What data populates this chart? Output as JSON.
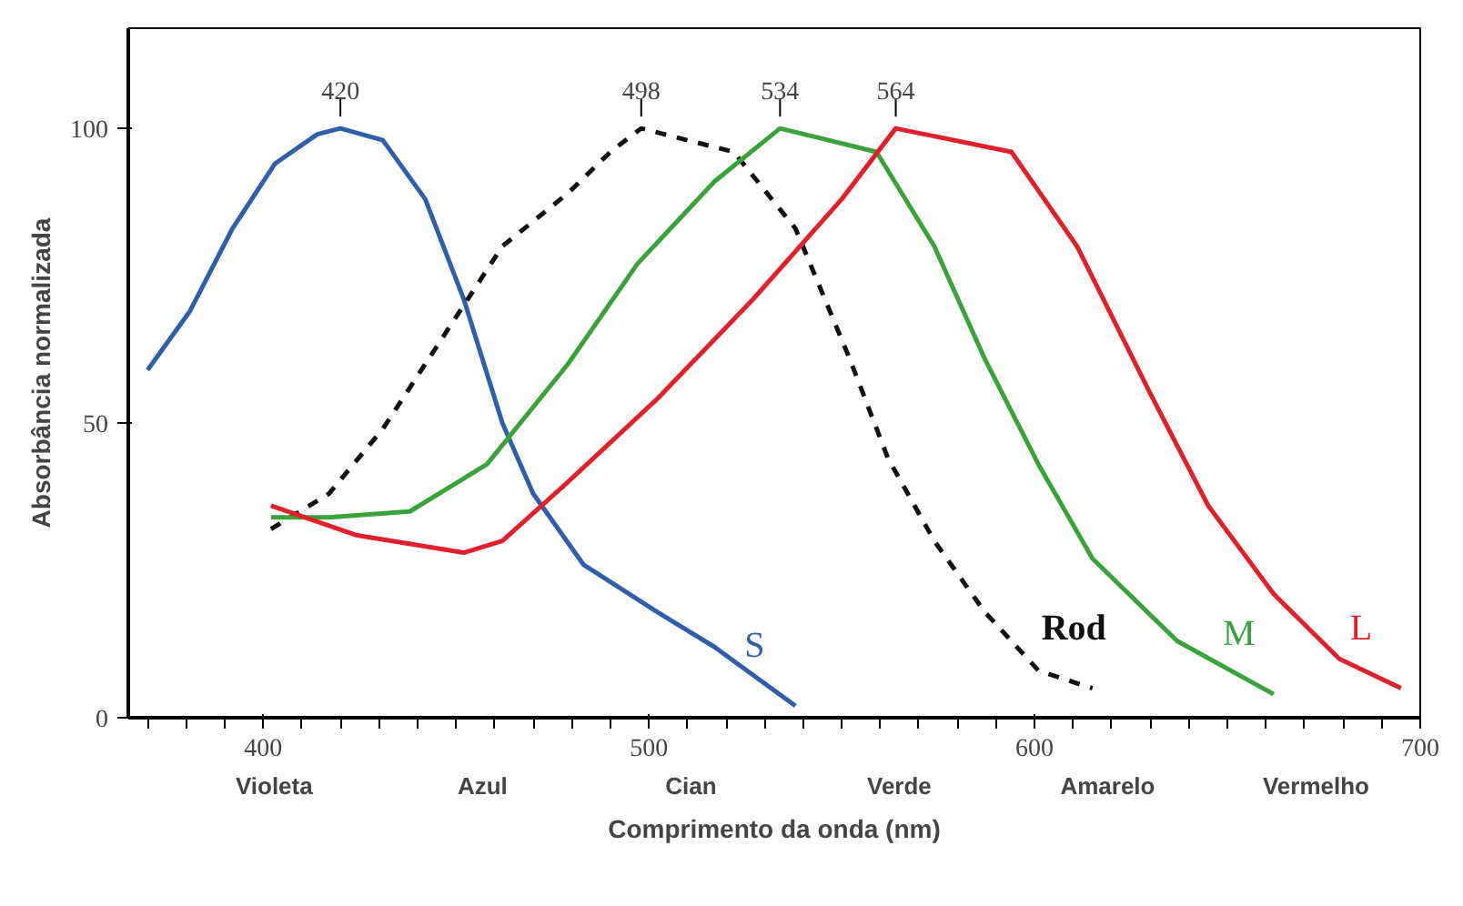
{
  "chart_data": {
    "type": "line",
    "xlabel": "Comprimento da onda (nm)",
    "ylabel": "Absorbância normalizada",
    "xlim": [
      365,
      700
    ],
    "ylim": [
      0,
      117
    ],
    "xticks": [
      400,
      500,
      600,
      700
    ],
    "yticks": [
      0,
      50,
      100
    ],
    "grid": false,
    "marker": "none",
    "series": [
      {
        "name": "S",
        "color": "#2f5fa8",
        "line_style": "solid",
        "x": [
          370,
          381,
          392,
          403,
          414,
          420,
          431,
          442,
          452,
          462,
          470,
          483,
          502,
          517,
          538
        ],
        "values": [
          59,
          69,
          83,
          94,
          99,
          100,
          98,
          88,
          71,
          50,
          38,
          26,
          18,
          12,
          2
        ]
      },
      {
        "name": "Rod",
        "color": "#111111",
        "line_style": "dashed",
        "x": [
          402,
          417,
          431,
          446,
          462,
          479,
          490,
          498,
          522,
          538,
          552,
          562,
          574,
          587,
          601,
          615
        ],
        "values": [
          32,
          38,
          49,
          64,
          80,
          89,
          96,
          100,
          96,
          83,
          61,
          44,
          30,
          18,
          8,
          5
        ]
      },
      {
        "name": "M",
        "color": "#3aa23a",
        "line_style": "solid",
        "x": [
          402,
          417,
          438,
          458,
          479,
          497,
          517,
          534,
          559,
          574,
          587,
          601,
          615,
          637,
          662
        ],
        "values": [
          34,
          34,
          35,
          43,
          60,
          77,
          91,
          100,
          96,
          80,
          61,
          43,
          27,
          13,
          4
        ]
      },
      {
        "name": "L",
        "color": "#e0202a",
        "line_style": "solid",
        "x": [
          402,
          424,
          452,
          462,
          479,
          502,
          527,
          550,
          564,
          594,
          611,
          630,
          645,
          662,
          679,
          695
        ],
        "values": [
          36,
          31,
          28,
          30,
          40,
          54,
          71,
          88,
          100,
          96,
          80,
          55,
          36,
          21,
          10,
          5
        ]
      }
    ],
    "annotations": [
      {
        "text": "420",
        "x": 420,
        "y": 100
      },
      {
        "text": "498",
        "x": 498,
        "y": 100
      },
      {
        "text": "534",
        "x": 534,
        "y": 100
      },
      {
        "text": "564",
        "x": 564,
        "y": 100
      },
      "Violeta",
      "Azul",
      "Cian",
      "Verde",
      "Amarelo",
      "Vermelho"
    ]
  }
}
